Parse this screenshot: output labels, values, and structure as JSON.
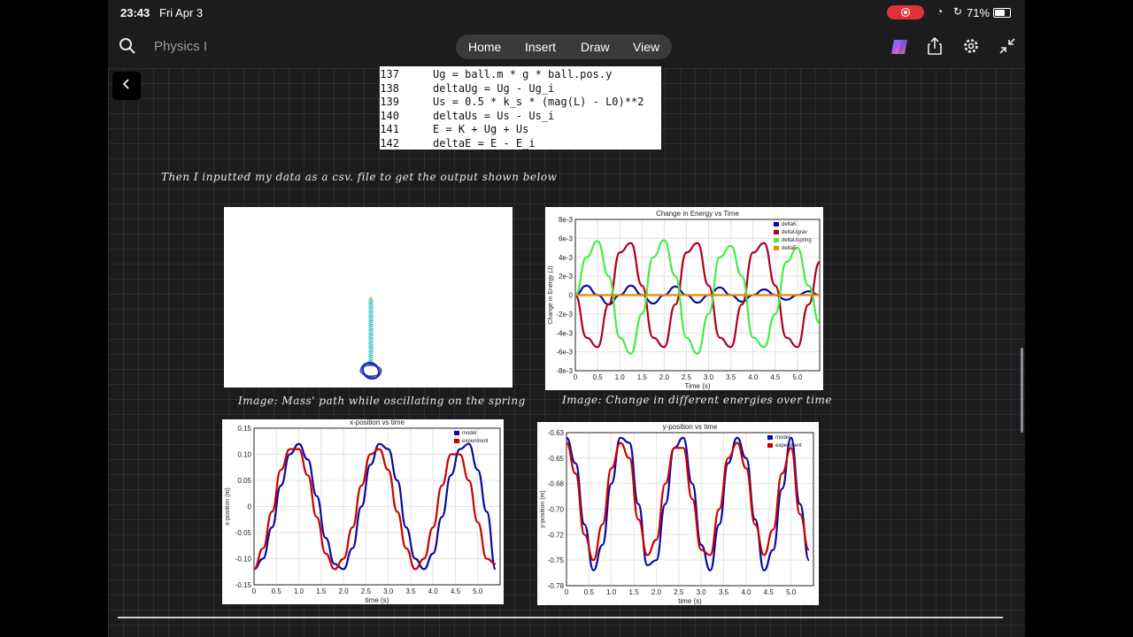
{
  "status": {
    "time": "23:43",
    "date": "Fri Apr 3",
    "battery": "71%",
    "battery_level": 0.71
  },
  "toolbar": {
    "notebook_title": "Physics I",
    "tabs": [
      "Home",
      "Insert",
      "Draw",
      "View"
    ],
    "icons": [
      "search-icon",
      "copilot-icon",
      "share-icon",
      "gear-icon",
      "collapse-icon"
    ]
  },
  "code": {
    "lines": [
      {
        "n": "137",
        "text": "Ug = ball.m * g * ball.pos.y"
      },
      {
        "n": "138",
        "text": "deltaUg = Ug - Ug_i"
      },
      {
        "n": "139",
        "text": "Us = 0.5 * k_s * (mag(L) - L0)**2"
      },
      {
        "n": "140",
        "text": "deltaUs = Us - Us_i"
      },
      {
        "n": "141",
        "text": "E = K + Ug + Us"
      },
      {
        "n": "142",
        "text": "deltaE = E - E_i"
      }
    ]
  },
  "notes": {
    "intro": "Then I inputted my data as a csv. file to get the output shown below",
    "caption_left": "Image: Mass' path while oscillating on the spring",
    "caption_right": "Image: Change in different energies over time"
  },
  "colors": {
    "model": "#0a0aa0",
    "experiment": "#cc0000",
    "deltaK": "#0a0aa0",
    "deltaUgrav": "#b00020",
    "deltaUspring": "#44ee44",
    "deltaE": "#ee8800"
  },
  "chart_data": [
    {
      "type": "line",
      "title": "Change in Energy vs Time",
      "xlabel": "Time (s)",
      "ylabel": "Change in Energy (J)",
      "xlim": [
        0,
        5.5
      ],
      "ylim": [
        -0.008,
        0.008
      ],
      "x_ticks": [
        "0",
        "0.5",
        "1.0",
        "1.5",
        "2.0",
        "2.5",
        "3.0",
        "3.5",
        "4.0",
        "4.5",
        "5.0"
      ],
      "y_ticks": [
        "8e-3",
        "6e-3",
        "4e-3",
        "2e-3",
        "0",
        "-2e-3",
        "-4e-3",
        "-6e-3",
        "-8e-3"
      ],
      "legend": "top-right",
      "grid": true,
      "series": [
        {
          "name": "deltaK",
          "x": [
            0,
            0.25,
            0.5,
            0.75,
            1.0,
            1.25,
            1.5,
            1.75,
            2.0,
            2.25,
            2.5,
            2.75,
            3.0,
            3.25,
            3.5,
            3.75,
            4.0,
            4.25,
            4.5,
            4.75,
            5.0,
            5.25,
            5.5
          ],
          "values": [
            0,
            0.001,
            0,
            -0.001,
            0,
            0.001,
            0,
            -0.0009,
            0,
            0.0009,
            0,
            -0.0008,
            0,
            0.0008,
            0,
            -0.0007,
            0,
            0.0006,
            0,
            -0.0005,
            0,
            0.0004,
            0
          ]
        },
        {
          "name": "deltaUgrav",
          "x": [
            0,
            0.25,
            0.5,
            0.75,
            1.0,
            1.25,
            1.5,
            1.75,
            2.0,
            2.25,
            2.5,
            2.75,
            3.0,
            3.25,
            3.5,
            3.75,
            4.0,
            4.25,
            4.5,
            4.75,
            5.0,
            5.25,
            5.5
          ],
          "values": [
            0,
            -0.0045,
            -0.0055,
            -0.001,
            0.0045,
            0.0055,
            0.001,
            -0.0045,
            -0.0055,
            -0.001,
            0.0045,
            0.0055,
            0.001,
            -0.0045,
            -0.0055,
            -0.001,
            0.0045,
            0.0055,
            0.001,
            -0.0045,
            -0.0055,
            -0.001,
            0.0035
          ]
        },
        {
          "name": "deltaUspring",
          "x": [
            0,
            0.25,
            0.5,
            0.75,
            1.0,
            1.25,
            1.5,
            1.75,
            2.0,
            2.25,
            2.5,
            2.75,
            3.0,
            3.25,
            3.5,
            3.75,
            4.0,
            4.25,
            4.5,
            4.75,
            5.0,
            5.25,
            5.5
          ],
          "values": [
            0,
            0.004,
            0.0057,
            0.002,
            -0.0045,
            -0.0062,
            -0.002,
            0.004,
            0.0058,
            0.002,
            -0.0045,
            -0.0062,
            -0.002,
            0.004,
            0.0052,
            0.002,
            -0.0045,
            -0.0055,
            -0.002,
            0.0035,
            0.005,
            0.001,
            -0.003
          ]
        },
        {
          "name": "deltaE",
          "x": [
            0,
            5.5
          ],
          "values": [
            0,
            0
          ]
        }
      ]
    },
    {
      "type": "line",
      "title": "x-position vs time",
      "xlabel": "time (s)",
      "ylabel": "x-position (m)",
      "xlim": [
        0,
        5.5
      ],
      "ylim": [
        -0.15,
        0.15
      ],
      "x_ticks": [
        "0",
        "0.5",
        "1.0",
        "1.5",
        "2.0",
        "2.5",
        "3.0",
        "3.5",
        "4.0",
        "4.5",
        "5.0"
      ],
      "y_ticks": [
        "0.15",
        "0.10",
        "0.05",
        "0",
        "-0.05",
        "-0.10",
        "-0.15"
      ],
      "legend": "top-right",
      "grid": true,
      "series": [
        {
          "name": "model",
          "x": [
            0,
            0.2,
            0.4,
            0.6,
            0.8,
            1.0,
            1.2,
            1.4,
            1.6,
            1.8,
            2.0,
            2.2,
            2.4,
            2.6,
            2.8,
            3.0,
            3.2,
            3.4,
            3.6,
            3.8,
            4.0,
            4.2,
            4.4,
            4.6,
            4.8,
            5.0,
            5.2,
            5.4
          ],
          "values": [
            -0.12,
            -0.1,
            -0.04,
            0.04,
            0.1,
            0.12,
            0.09,
            0.02,
            -0.06,
            -0.11,
            -0.12,
            -0.08,
            0,
            0.08,
            0.12,
            0.11,
            0.05,
            -0.04,
            -0.1,
            -0.12,
            -0.09,
            -0.02,
            0.06,
            0.11,
            0.12,
            0.07,
            -0.01,
            -0.12
          ]
        },
        {
          "name": "experiment",
          "x": [
            0,
            0.2,
            0.4,
            0.6,
            0.8,
            1.0,
            1.2,
            1.4,
            1.6,
            1.8,
            2.0,
            2.2,
            2.4,
            2.6,
            2.8,
            3.0,
            3.2,
            3.4,
            3.6,
            3.8,
            4.0,
            4.2,
            4.4,
            4.6,
            4.8,
            5.0,
            5.2,
            5.4
          ],
          "values": [
            -0.12,
            -0.08,
            -0.01,
            0.07,
            0.11,
            0.11,
            0.06,
            -0.02,
            -0.09,
            -0.12,
            -0.1,
            -0.04,
            0.04,
            0.1,
            0.11,
            0.07,
            -0.01,
            -0.08,
            -0.12,
            -0.1,
            -0.04,
            0.04,
            0.1,
            0.1,
            0.05,
            -0.03,
            -0.1,
            -0.11
          ]
        }
      ]
    },
    {
      "type": "line",
      "title": "y-position vs time",
      "xlabel": "time (s)",
      "ylabel": "y-position (m)",
      "xlim": [
        0,
        5.5
      ],
      "ylim": [
        -0.78,
        -0.63
      ],
      "x_ticks": [
        "0",
        "0.5",
        "1.0",
        "1.5",
        "2.0",
        "2.5",
        "3.0",
        "3.5",
        "4.0",
        "4.5",
        "5.0"
      ],
      "y_ticks": [
        "-0.63",
        "-0.65",
        "-0.68",
        "-0.70",
        "-0.72",
        "-0.75",
        "-0.78"
      ],
      "legend": "top-right",
      "grid": true,
      "series": [
        {
          "name": "model",
          "x": [
            0,
            0.2,
            0.4,
            0.6,
            0.8,
            1.0,
            1.2,
            1.4,
            1.6,
            1.8,
            2.0,
            2.2,
            2.4,
            2.6,
            2.8,
            3.0,
            3.2,
            3.4,
            3.6,
            3.8,
            4.0,
            4.2,
            4.4,
            4.6,
            4.8,
            5.0,
            5.2,
            5.4
          ],
          "values": [
            -0.635,
            -0.66,
            -0.72,
            -0.765,
            -0.74,
            -0.68,
            -0.635,
            -0.64,
            -0.7,
            -0.76,
            -0.755,
            -0.7,
            -0.645,
            -0.635,
            -0.68,
            -0.74,
            -0.765,
            -0.72,
            -0.66,
            -0.635,
            -0.655,
            -0.715,
            -0.765,
            -0.745,
            -0.685,
            -0.635,
            -0.7,
            -0.755
          ]
        },
        {
          "name": "experiment",
          "x": [
            0,
            0.2,
            0.4,
            0.6,
            0.8,
            1.0,
            1.2,
            1.4,
            1.6,
            1.8,
            2.0,
            2.2,
            2.4,
            2.6,
            2.8,
            3.0,
            3.2,
            3.4,
            3.6,
            3.8,
            4.0,
            4.2,
            4.4,
            4.6,
            4.8,
            5.0,
            5.2,
            5.4
          ],
          "values": [
            -0.64,
            -0.67,
            -0.73,
            -0.755,
            -0.72,
            -0.665,
            -0.64,
            -0.655,
            -0.715,
            -0.75,
            -0.735,
            -0.68,
            -0.645,
            -0.645,
            -0.695,
            -0.745,
            -0.75,
            -0.705,
            -0.655,
            -0.64,
            -0.665,
            -0.72,
            -0.75,
            -0.725,
            -0.67,
            -0.645,
            -0.71,
            -0.745
          ]
        }
      ]
    }
  ]
}
